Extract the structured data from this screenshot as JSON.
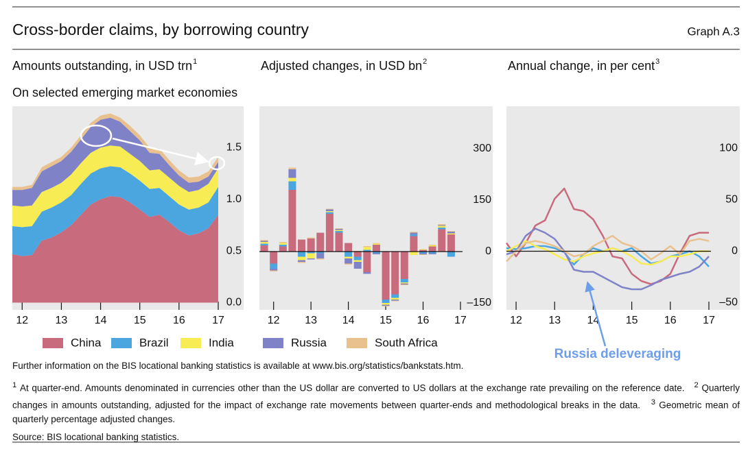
{
  "header": {
    "title": "Cross-border claims, by borrowing country",
    "graph_label": "Graph A.3",
    "subtitle": "On selected emerging market economies"
  },
  "chart_data": [
    {
      "type": "area",
      "stacked": true,
      "title": "Amounts outstanding, in USD trn",
      "title_note": "1",
      "x": [
        2011.75,
        2012,
        2012.25,
        2012.5,
        2012.75,
        2013,
        2013.25,
        2013.5,
        2013.75,
        2014,
        2014.25,
        2014.5,
        2014.75,
        2015,
        2015.25,
        2015.5,
        2015.75,
        2016,
        2016.25,
        2016.5,
        2016.75,
        2017
      ],
      "xlim": [
        2011.75,
        2017
      ],
      "xticks": [
        {
          "value": 2012,
          "label": "12"
        },
        {
          "value": 2013,
          "label": "13"
        },
        {
          "value": 2014,
          "label": "14"
        },
        {
          "value": 2015,
          "label": "15"
        },
        {
          "value": 2016,
          "label": "16"
        },
        {
          "value": 2017,
          "label": "17"
        }
      ],
      "ylim": [
        -0.07,
        1.9
      ],
      "yticks": [
        {
          "value": 0,
          "label": "0.0"
        },
        0.5,
        {
          "value": 1,
          "label": "1.0"
        },
        1.5
      ],
      "series": [
        {
          "name": "China",
          "color": "#c86b7d",
          "values": [
            0.47,
            0.45,
            0.46,
            0.6,
            0.63,
            0.68,
            0.75,
            0.85,
            0.95,
            1.0,
            1.03,
            1.02,
            0.97,
            0.9,
            0.83,
            0.85,
            0.78,
            0.7,
            0.65,
            0.67,
            0.72,
            0.85
          ]
        },
        {
          "name": "Brazil",
          "color": "#4ba6e0",
          "values": [
            0.27,
            0.28,
            0.28,
            0.28,
            0.29,
            0.29,
            0.29,
            0.3,
            0.3,
            0.3,
            0.29,
            0.29,
            0.28,
            0.28,
            0.27,
            0.26,
            0.25,
            0.25,
            0.25,
            0.25,
            0.25,
            0.27
          ]
        },
        {
          "name": "India",
          "color": "#f8ec55",
          "values": [
            0.2,
            0.2,
            0.2,
            0.19,
            0.19,
            0.19,
            0.2,
            0.2,
            0.2,
            0.2,
            0.2,
            0.2,
            0.19,
            0.19,
            0.18,
            0.18,
            0.18,
            0.18,
            0.17,
            0.17,
            0.18,
            0.18
          ]
        },
        {
          "name": "Russia",
          "color": "#8082c8",
          "values": [
            0.15,
            0.16,
            0.17,
            0.2,
            0.21,
            0.21,
            0.22,
            0.23,
            0.25,
            0.27,
            0.27,
            0.24,
            0.22,
            0.2,
            0.17,
            0.15,
            0.12,
            0.1,
            0.09,
            0.08,
            0.07,
            0.06
          ]
        },
        {
          "name": "South Africa",
          "color": "#e9c18f",
          "values": [
            0.03,
            0.03,
            0.03,
            0.04,
            0.04,
            0.04,
            0.04,
            0.04,
            0.04,
            0.04,
            0.04,
            0.04,
            0.05,
            0.05,
            0.05,
            0.05,
            0.05,
            0.05,
            0.05,
            0.05,
            0.05,
            0.05
          ]
        }
      ]
    },
    {
      "type": "bar",
      "stacked": true,
      "zero_line": true,
      "title": "Adjusted changes, in USD bn",
      "title_note": "2",
      "x": [
        2011.75,
        2012,
        2012.25,
        2012.5,
        2012.75,
        2013,
        2013.25,
        2013.5,
        2013.75,
        2014,
        2014.25,
        2014.5,
        2014.75,
        2015,
        2015.25,
        2015.5,
        2015.75,
        2016,
        2016.25,
        2016.5,
        2016.75
      ],
      "xlim": [
        2011.62,
        2017
      ],
      "xticks": [
        {
          "value": 2012,
          "label": "12"
        },
        {
          "value": 2013,
          "label": "13"
        },
        {
          "value": 2014,
          "label": "14"
        },
        {
          "value": 2015,
          "label": "15"
        },
        {
          "value": 2016,
          "label": "16"
        },
        {
          "value": 2017,
          "label": "17"
        }
      ],
      "ylim": [
        -170,
        424
      ],
      "yticks": [
        {
          "value": -150,
          "label": "–150"
        },
        0,
        150,
        300
      ],
      "series": [
        {
          "name": "China",
          "color": "#c86b7d",
          "values": [
            18,
            -35,
            15,
            180,
            35,
            38,
            55,
            110,
            55,
            25,
            -15,
            -60,
            20,
            -140,
            -125,
            -80,
            45,
            5,
            15,
            65,
            50
          ]
        },
        {
          "name": "Brazil",
          "color": "#4ba6e0",
          "values": [
            5,
            -15,
            5,
            25,
            -15,
            -5,
            -5,
            5,
            5,
            -15,
            -10,
            5,
            -5,
            -10,
            -10,
            -10,
            5,
            -5,
            -5,
            5,
            -15
          ]
        },
        {
          "name": "India",
          "color": "#f8ec55",
          "values": [
            5,
            0,
            5,
            10,
            -10,
            -15,
            0,
            3,
            3,
            -5,
            -5,
            8,
            3,
            -5,
            -5,
            -3,
            -10,
            2,
            3,
            5,
            3
          ]
        },
        {
          "name": "Russia",
          "color": "#8082c8",
          "values": [
            3,
            -5,
            0,
            25,
            -5,
            -3,
            -15,
            5,
            3,
            -15,
            -20,
            -5,
            -3,
            -3,
            -3,
            -3,
            5,
            -3,
            -3,
            2,
            5
          ]
        },
        {
          "name": "South Africa",
          "color": "#e9c18f",
          "values": [
            3,
            -3,
            3,
            5,
            -3,
            3,
            -3,
            2,
            2,
            -3,
            2,
            3,
            2,
            -2,
            -2,
            -2,
            3,
            -2,
            2,
            3,
            2
          ]
        }
      ]
    },
    {
      "type": "line",
      "zero_line": true,
      "title": "Annual change, in per cent",
      "title_note": "3",
      "annotation": "Russia deleveraging",
      "x": [
        2011.75,
        2012,
        2012.25,
        2012.5,
        2012.75,
        2013,
        2013.25,
        2013.5,
        2013.75,
        2014,
        2014.25,
        2014.5,
        2014.75,
        2015,
        2015.25,
        2015.5,
        2015.75,
        2016,
        2016.25,
        2016.5,
        2016.75,
        2017
      ],
      "xlim": [
        2011.75,
        2017
      ],
      "xticks": [
        {
          "value": 2012,
          "label": "12"
        },
        {
          "value": 2013,
          "label": "13"
        },
        {
          "value": 2014,
          "label": "14"
        },
        {
          "value": 2015,
          "label": "15"
        },
        {
          "value": 2016,
          "label": "16"
        },
        {
          "value": 2017,
          "label": "17"
        }
      ],
      "ylim": [
        -57,
        141
      ],
      "yticks": [
        {
          "value": -50,
          "label": "–50"
        },
        0,
        50,
        100
      ],
      "series": [
        {
          "name": "China",
          "color": "#c86b7d",
          "values": [
            8,
            -5,
            8,
            25,
            30,
            51,
            61,
            41,
            39,
            31,
            15,
            -5,
            -7,
            -22,
            -29,
            -32,
            -29,
            -22,
            -2,
            15,
            18,
            18
          ]
        },
        {
          "name": "Brazil",
          "color": "#4ba6e0",
          "values": [
            3,
            2,
            3,
            5,
            5,
            3,
            -1,
            -13,
            -3,
            3,
            0,
            3,
            0,
            3,
            -5,
            -12,
            -10,
            -5,
            -3,
            0,
            -5,
            -15
          ]
        },
        {
          "name": "India",
          "color": "#f8ec55",
          "values": [
            0,
            5,
            10,
            5,
            2,
            -3,
            -8,
            -10,
            -5,
            -2,
            0,
            3,
            0,
            -5,
            -12,
            -13,
            -10,
            -5,
            -5,
            -3,
            0,
            0
          ]
        },
        {
          "name": "Russia",
          "color": "#8082c8",
          "values": [
            -3,
            0,
            15,
            22,
            18,
            12,
            0,
            -18,
            -20,
            -20,
            -25,
            -30,
            -35,
            -37,
            -37,
            -33,
            -28,
            -25,
            -22,
            -20,
            -15,
            -5
          ]
        },
        {
          "name": "South Africa",
          "color": "#e9c18f",
          "values": [
            -10,
            0,
            8,
            10,
            8,
            5,
            0,
            -5,
            -3,
            5,
            10,
            15,
            8,
            5,
            0,
            -8,
            -2,
            5,
            -3,
            10,
            12,
            10
          ]
        }
      ]
    }
  ],
  "notes": {
    "info": "Further information on the BIS locational banking statistics is available at",
    "link": "www.bis.org/statistics/bankstats.htm.",
    "footnotes": [
      {
        "marker": "1",
        "text": "At quarter-end. Amounts denominated in currencies other than the US dollar are converted to US dollars at the exchange rate prevailing on the reference date."
      },
      {
        "marker": "2",
        "text": "Quarterly changes in amounts outstanding, adjusted for the impact of exchange rate movements between quarter-ends and methodological breaks in the data."
      },
      {
        "marker": "3",
        "text": "Geometric mean of quarterly percentage adjusted changes."
      }
    ],
    "source": "Source: BIS locational banking statistics."
  }
}
